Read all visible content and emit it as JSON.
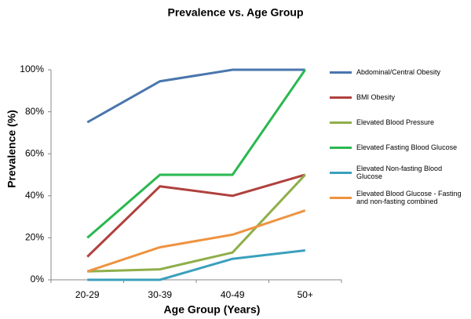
{
  "chart_data": {
    "type": "line",
    "title": "Prevalence vs. Age Group",
    "x_label": "Age Group (Years)",
    "y_label": "Prevalence (%)",
    "categories": [
      "20-29",
      "30-39",
      "40-49",
      "50+"
    ],
    "series": [
      {
        "name": "Abdominal/Central Obesity",
        "color": "#4a76ad",
        "values": [
          75,
          94.5,
          100,
          100
        ]
      },
      {
        "name": "BMI Obesity",
        "color": "#b0413e",
        "values": [
          11,
          44.5,
          40,
          50
        ]
      },
      {
        "name": "Elevated Blood Pressure",
        "color": "#8fae4a",
        "values": [
          4,
          5,
          13,
          50
        ]
      },
      {
        "name": "Elevated Fasting Blood Glucose",
        "color": "#2ab84f",
        "values": [
          20,
          50,
          50,
          100
        ]
      },
      {
        "name": "Elevated Non-fasting Blood Glucose",
        "color": "#3aa0bd",
        "values": [
          0,
          0,
          10,
          14
        ]
      },
      {
        "name": "Elevated Blood Glucose - Fasting and non-fasting combined",
        "color": "#ee9340",
        "values": [
          4,
          15.5,
          21.5,
          33
        ]
      }
    ],
    "ylim": [
      0,
      100
    ],
    "yticks": [
      {
        "value": 0,
        "label": "0%"
      },
      {
        "value": 20,
        "label": "20%"
      },
      {
        "value": 40,
        "label": "40%"
      },
      {
        "value": 60,
        "label": "60%"
      },
      {
        "value": 80,
        "label": "80%"
      },
      {
        "value": 100,
        "label": "100%"
      }
    ],
    "grid": false,
    "legend": "right"
  }
}
